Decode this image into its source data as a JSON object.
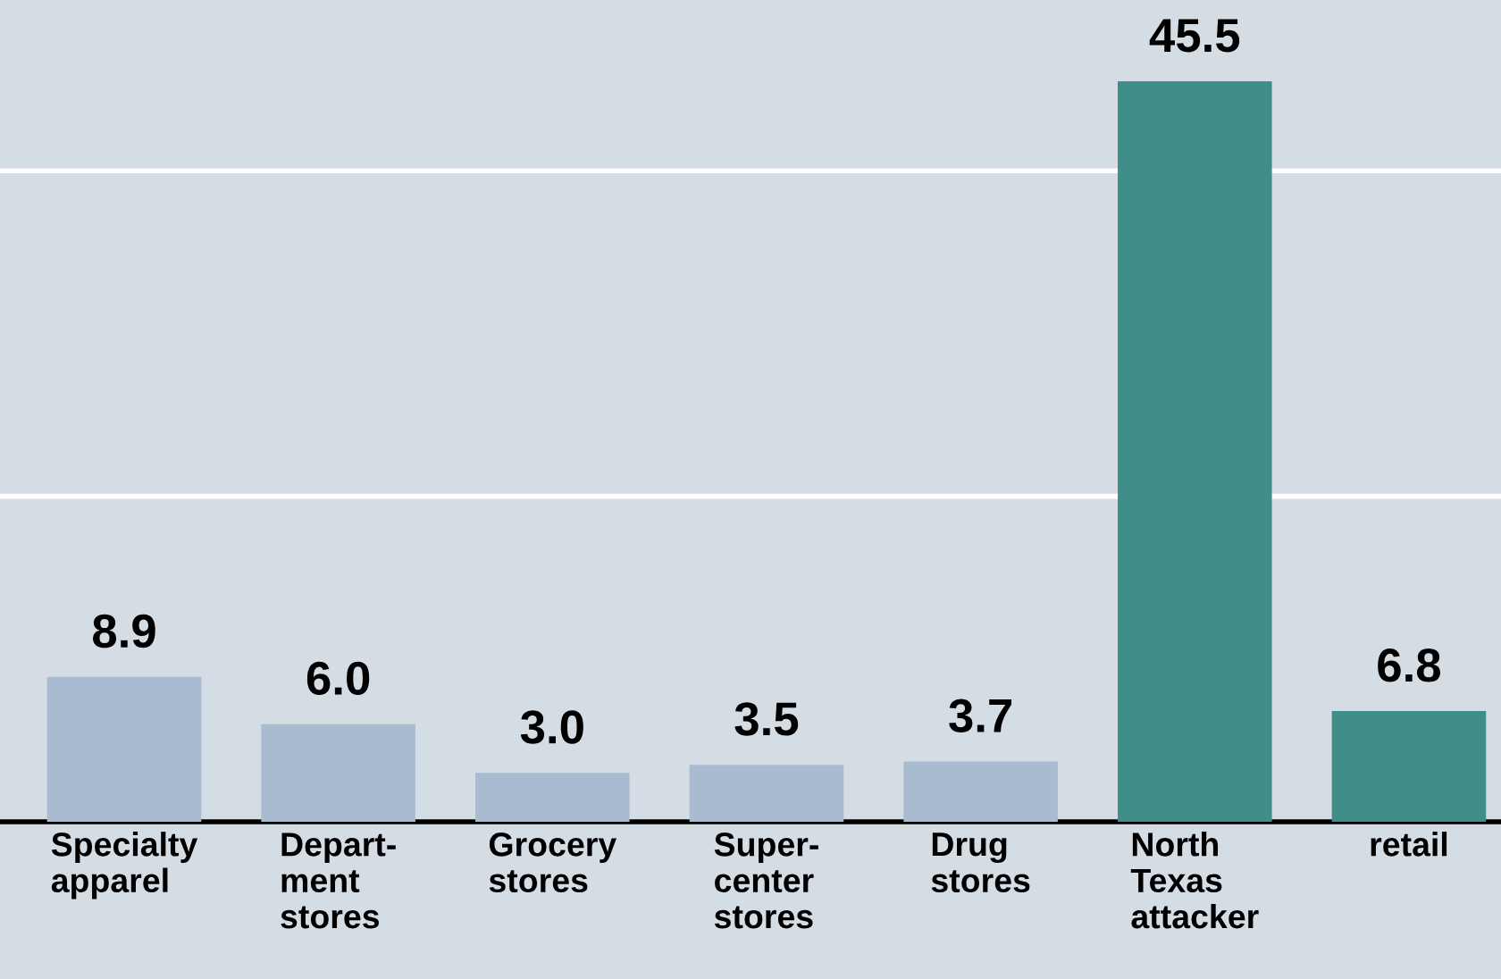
{
  "chart_data": {
    "type": "bar",
    "categories": [
      "Specialty\napparel",
      "Depart-\nment\nstores",
      "Grocery\nstores",
      "Super-\ncenter\nstores",
      "Drug\nstores",
      "North\nTexas\nattacker",
      "retail"
    ],
    "values": [
      8.9,
      6.0,
      3.0,
      3.5,
      3.7,
      45.5,
      6.8
    ],
    "value_labels": [
      "8.9",
      "6.0",
      "3.0",
      "3.5",
      "3.7",
      "45.5",
      "6.8"
    ],
    "colors": [
      "#a8bbd0",
      "#a8bbd0",
      "#a8bbd0",
      "#a8bbd0",
      "#a8bbd0",
      "#3f8e8a",
      "#3f8e8a"
    ],
    "ylim": [
      0,
      50.5
    ],
    "ref_lines": [
      {
        "axis": "y",
        "value": 20,
        "color": "#ffffff"
      },
      {
        "axis": "y",
        "value": 40,
        "color": "#ffffff"
      }
    ],
    "tick_labels": "x"
  }
}
